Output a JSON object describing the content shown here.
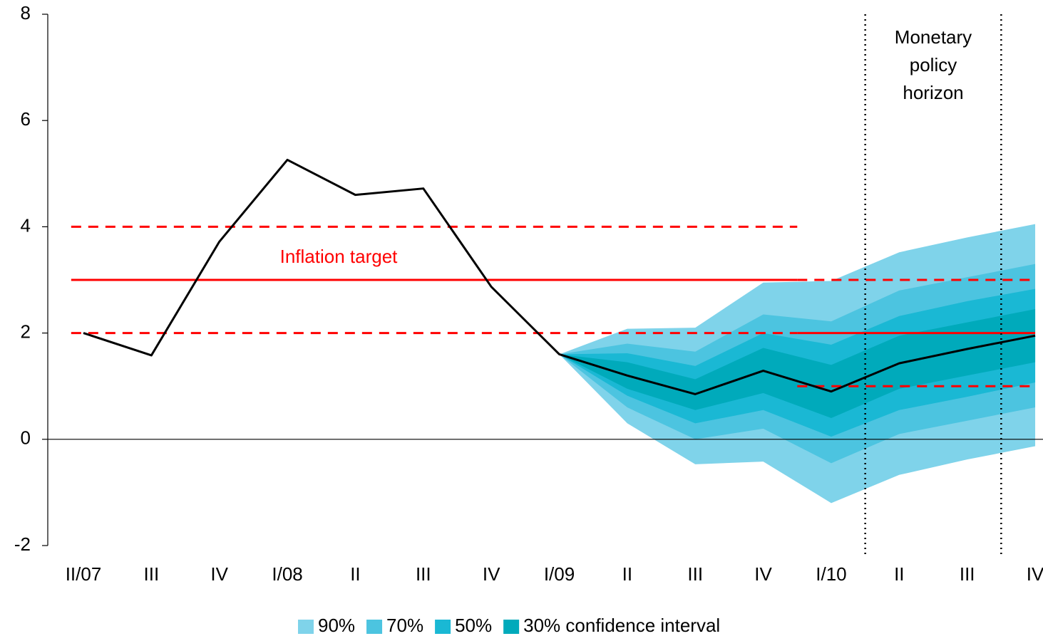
{
  "chart_data": {
    "type": "fan",
    "categories": [
      "II/07",
      "III",
      "IV",
      "I/08",
      "II",
      "III",
      "IV",
      "I/09",
      "II",
      "III",
      "IV",
      "I/10",
      "II",
      "III",
      "IV"
    ],
    "ylim": [
      -2,
      8
    ],
    "yticks": [
      -2,
      0,
      2,
      4,
      6,
      8
    ],
    "line": {
      "color": "#000000",
      "values": [
        2.0,
        1.58,
        3.72,
        5.26,
        4.6,
        4.72,
        2.87,
        1.6,
        1.2,
        0.85,
        1.29,
        0.9,
        1.43,
        1.7,
        1.95
      ]
    },
    "series": [
      {
        "name": "90%",
        "color": "#7fd3ea",
        "upper": [
          null,
          null,
          null,
          null,
          null,
          null,
          null,
          1.6,
          2.08,
          2.1,
          2.95,
          2.98,
          3.52,
          3.8,
          4.05
        ],
        "lower": [
          null,
          null,
          null,
          null,
          null,
          null,
          null,
          1.6,
          0.3,
          -0.47,
          -0.42,
          -1.2,
          -0.67,
          -0.38,
          -0.13
        ]
      },
      {
        "name": "70%",
        "color": "#4cc4e0",
        "upper": [
          null,
          null,
          null,
          null,
          null,
          null,
          null,
          1.6,
          1.8,
          1.65,
          2.35,
          2.22,
          2.8,
          3.05,
          3.3
        ],
        "lower": [
          null,
          null,
          null,
          null,
          null,
          null,
          null,
          1.6,
          0.6,
          0.0,
          0.2,
          -0.45,
          0.1,
          0.35,
          0.6
        ]
      },
      {
        "name": "50%",
        "color": "#1ab8d4",
        "upper": [
          null,
          null,
          null,
          null,
          null,
          null,
          null,
          1.6,
          1.62,
          1.38,
          2.0,
          1.78,
          2.32,
          2.6,
          2.83
        ],
        "lower": [
          null,
          null,
          null,
          null,
          null,
          null,
          null,
          1.6,
          0.82,
          0.3,
          0.55,
          0.05,
          0.55,
          0.8,
          1.07
        ]
      },
      {
        "name": "30% confidence interval",
        "color": "#00aabb",
        "upper": [
          null,
          null,
          null,
          null,
          null,
          null,
          null,
          1.6,
          1.45,
          1.13,
          1.72,
          1.4,
          1.95,
          2.2,
          2.45
        ],
        "lower": [
          null,
          null,
          null,
          null,
          null,
          null,
          null,
          1.6,
          0.95,
          0.55,
          0.87,
          0.4,
          0.95,
          1.2,
          1.45
        ]
      }
    ],
    "target": {
      "label": "Inflation target",
      "color": "#ff0000",
      "segments": [
        {
          "x": [
            -0.18,
            10.5
          ],
          "center": 3,
          "lower": 2,
          "upper": 4
        },
        {
          "x": [
            10.5,
            14
          ],
          "center": 2,
          "lower": 1,
          "upper": 3
        }
      ]
    },
    "horizon": {
      "label": [
        "Monetary",
        "policy",
        "horizon"
      ],
      "x": [
        11.5,
        13.5
      ]
    },
    "legend": "bottom"
  }
}
